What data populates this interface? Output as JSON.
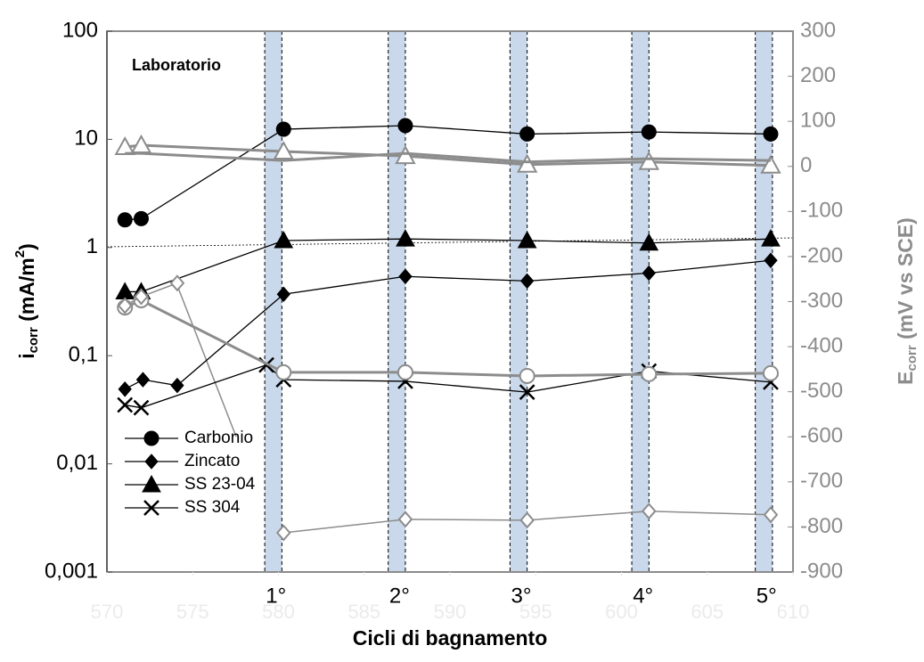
{
  "chart_data": {
    "type": "line",
    "title": "Laboratorio",
    "xlabel": "Cicli di bagnamento",
    "ylabel_parts": [
      "i",
      "corr",
      " (mA/m",
      "2",
      ")"
    ],
    "y2label_parts": [
      "E",
      "corr",
      " (mV vs SCE)"
    ],
    "ylog": true,
    "xlim": [
      570,
      610
    ],
    "xticks": [
      570,
      575,
      580,
      585,
      590,
      595,
      600,
      605,
      610
    ],
    "xtick_color": "#ebebeb",
    "ylim": [
      0.001,
      100
    ],
    "yticks": [
      {
        "value": 0.001,
        "label": "0,001"
      },
      {
        "value": 0.01,
        "label": "0,01"
      },
      {
        "value": 0.1,
        "label": "0,1"
      },
      1,
      10,
      100
    ],
    "y2lim": [
      -900,
      300
    ],
    "y2ticks": [
      -900,
      -800,
      -700,
      -600,
      -500,
      -400,
      -300,
      -200,
      -100,
      0,
      100,
      200,
      300
    ],
    "legend": "lower left",
    "annotations": [
      {
        "text": "1°",
        "x": 579.7
      },
      {
        "text": "2°",
        "x": 586.9
      },
      {
        "text": "3°",
        "x": 594
      },
      {
        "text": "4°",
        "x": 601.1
      },
      {
        "text": "5°",
        "x": 608.3
      }
    ],
    "series": [
      {
        "name": "Carbonio",
        "color": "#000000",
        "marker": "circle",
        "filled": true,
        "axis": "y",
        "x": [
          571.05,
          572,
          580.3,
          587.4,
          594.5,
          601.6,
          608.7
        ],
        "values": [
          1.8,
          1.85,
          12.4,
          13.4,
          11.2,
          11.7,
          11.2
        ]
      },
      {
        "name": "Zincato",
        "color": "#000000",
        "marker": "diamond",
        "filled": true,
        "axis": "y",
        "x": [
          571.05,
          572.1,
          574.1,
          580.3,
          587.4,
          594.5,
          601.6,
          608.7
        ],
        "values": [
          0.049,
          0.06,
          0.053,
          0.37,
          0.54,
          0.49,
          0.58,
          0.76
        ]
      },
      {
        "name": "SS 23-04",
        "color": "#000000",
        "marker": "triangle",
        "filled": true,
        "axis": "y",
        "x": [
          571.05,
          572,
          580.3,
          587.4,
          594.5,
          601.6,
          608.7
        ],
        "values": [
          0.39,
          0.39,
          1.16,
          1.2,
          1.16,
          1.1,
          1.2
        ]
      },
      {
        "name": "SS 304",
        "color": "#000000",
        "marker": "x",
        "filled": true,
        "axis": "y",
        "x": [
          571.05,
          572,
          579.3,
          580.3,
          587.4,
          594.5,
          601.6,
          608.7
        ],
        "values": [
          0.035,
          0.033,
          0.082,
          0.06,
          0.058,
          0.046,
          0.072,
          0.057
        ]
      },
      {
        "color": "#8c8c8c",
        "marker": "triangle",
        "filled": false,
        "axis": "y2",
        "x": [
          571.05,
          572,
          580.3,
          587.4,
          594.5,
          601.6,
          608.7
        ],
        "values": [
          43,
          47,
          33,
          23,
          4,
          10,
          2
        ]
      },
      {
        "color": "#8c8c8c",
        "marker": "none",
        "filled": false,
        "axis": "y2",
        "x": [
          571.05,
          572,
          580.3,
          587.4,
          594.5,
          601.6,
          608.7
        ],
        "values": [
          29,
          29,
          13,
          29,
          10,
          17,
          13
        ]
      },
      {
        "color": "#8c8c8c",
        "marker": "circle",
        "filled": false,
        "axis": "y2",
        "x": [
          571.05,
          572,
          580.3,
          587.4,
          594.5,
          601.6,
          608.7
        ],
        "values": [
          -313,
          -297,
          -457,
          -457,
          -465,
          -461,
          -459
        ]
      },
      {
        "color": "#8c8c8c",
        "marker": "diamond",
        "filled": false,
        "axis": "y2",
        "x": [
          571.05,
          572,
          574.1
        ],
        "values": [
          -309,
          -289,
          -259
        ]
      },
      {
        "color": "#8c8c8c",
        "marker": "diamond",
        "filled": false,
        "axis": "y2",
        "x": [
          580.3,
          587.4,
          594.5,
          601.6,
          608.7
        ],
        "values": [
          -813,
          -783,
          -785,
          -765,
          -773
        ]
      }
    ]
  }
}
